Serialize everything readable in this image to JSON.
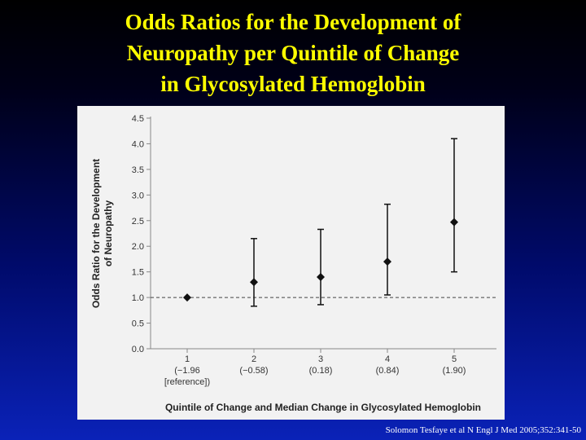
{
  "slide": {
    "title_lines": [
      "Odds Ratios for the Development of",
      "Neuropathy per Quintile of Change",
      "in Glycosylated Hemoglobin"
    ],
    "citation": "Solomon Tesfaye et al N Engl J Med 2005;352:341-50"
  },
  "chart_data": {
    "type": "scatter",
    "title": "",
    "xlabel": "Quintile of Change and Median Change in Glycosylated Hemoglobin",
    "ylabel_lines": [
      "Odds Ratio for the Development",
      "of Neuropathy"
    ],
    "ylim": [
      0,
      4.5
    ],
    "yticks": [
      "0.0",
      "0.5",
      "1.0",
      "1.5",
      "2.0",
      "2.5",
      "3.0",
      "3.5",
      "4.0",
      "4.5"
    ],
    "reference_line": 1.0,
    "grid": false,
    "categories": [
      {
        "lines": [
          "1",
          "(−1.96",
          "[reference])"
        ]
      },
      {
        "lines": [
          "2",
          "(−0.58)"
        ]
      },
      {
        "lines": [
          "3",
          "(0.18)"
        ]
      },
      {
        "lines": [
          "4",
          "(0.84)"
        ]
      },
      {
        "lines": [
          "5",
          "(1.90)"
        ]
      }
    ],
    "points": [
      {
        "quintile": 1,
        "odds_ratio": 1.0,
        "ci_low": null,
        "ci_high": null
      },
      {
        "quintile": 2,
        "odds_ratio": 1.3,
        "ci_low": 0.83,
        "ci_high": 2.15
      },
      {
        "quintile": 3,
        "odds_ratio": 1.4,
        "ci_low": 0.86,
        "ci_high": 2.33
      },
      {
        "quintile": 4,
        "odds_ratio": 1.7,
        "ci_low": 1.05,
        "ci_high": 2.82
      },
      {
        "quintile": 5,
        "odds_ratio": 2.47,
        "ci_low": 1.5,
        "ci_high": 4.1
      }
    ],
    "colors": {
      "marker": "#111111",
      "axis": "#888888",
      "text": "#222222"
    }
  }
}
